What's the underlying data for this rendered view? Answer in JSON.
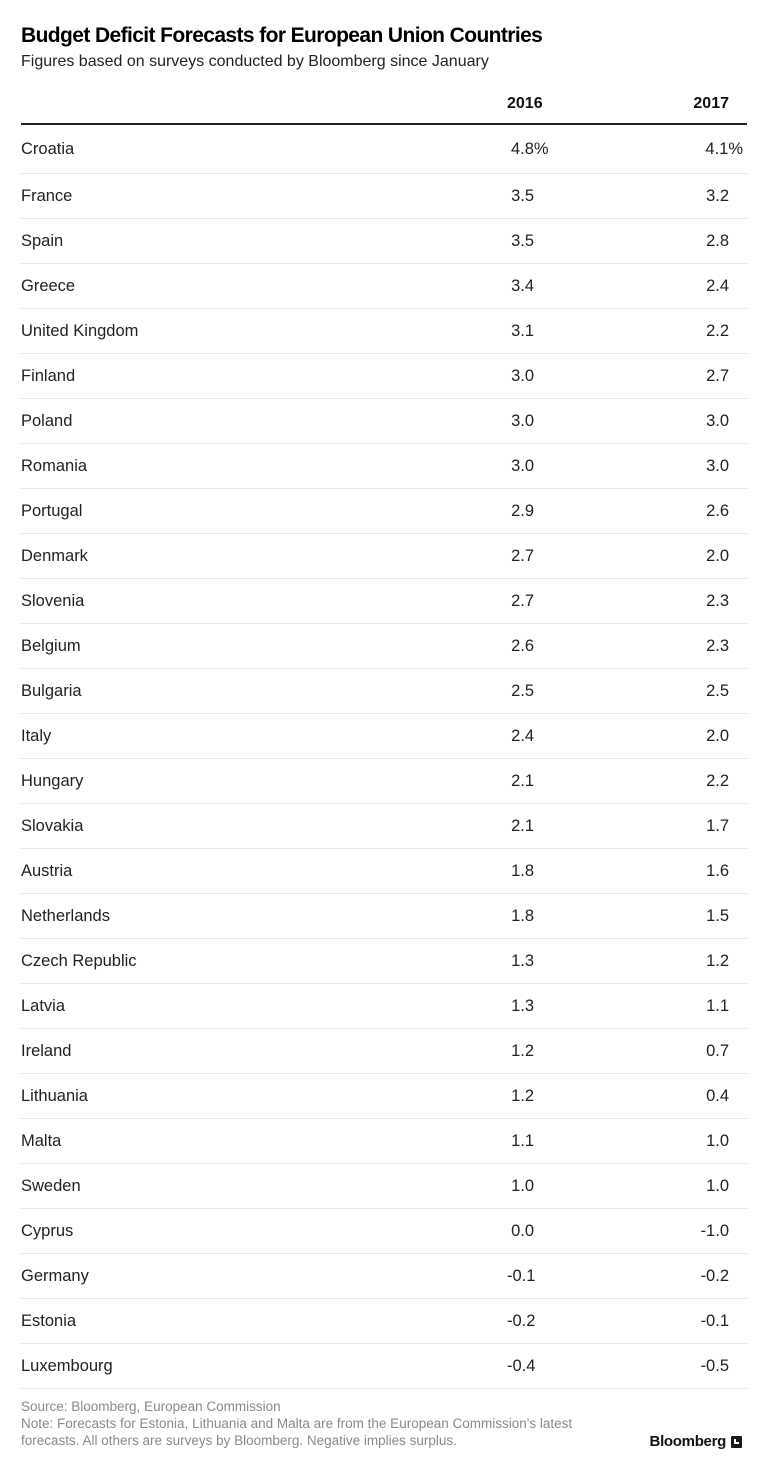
{
  "chart_data": {
    "type": "table",
    "title": "Budget Deficit Forecasts for European Union Countries",
    "subtitle": "Figures based on surveys conducted by Bloomberg since January",
    "columns": [
      "",
      "2016",
      "2017"
    ],
    "rows": [
      {
        "country": "Croatia",
        "y2016": "4.8%",
        "y2017": "4.1%"
      },
      {
        "country": "France",
        "y2016": "3.5",
        "y2017": "3.2"
      },
      {
        "country": "Spain",
        "y2016": "3.5",
        "y2017": "2.8"
      },
      {
        "country": "Greece",
        "y2016": "3.4",
        "y2017": "2.4"
      },
      {
        "country": "United Kingdom",
        "y2016": "3.1",
        "y2017": "2.2"
      },
      {
        "country": "Finland",
        "y2016": "3.0",
        "y2017": "2.7"
      },
      {
        "country": "Poland",
        "y2016": "3.0",
        "y2017": "3.0"
      },
      {
        "country": "Romania",
        "y2016": "3.0",
        "y2017": "3.0"
      },
      {
        "country": "Portugal",
        "y2016": "2.9",
        "y2017": "2.6"
      },
      {
        "country": "Denmark",
        "y2016": "2.7",
        "y2017": "2.0"
      },
      {
        "country": "Slovenia",
        "y2016": "2.7",
        "y2017": "2.3"
      },
      {
        "country": "Belgium",
        "y2016": "2.6",
        "y2017": "2.3"
      },
      {
        "country": "Bulgaria",
        "y2016": "2.5",
        "y2017": "2.5"
      },
      {
        "country": "Italy",
        "y2016": "2.4",
        "y2017": "2.0"
      },
      {
        "country": "Hungary",
        "y2016": "2.1",
        "y2017": "2.2"
      },
      {
        "country": "Slovakia",
        "y2016": "2.1",
        "y2017": "1.7"
      },
      {
        "country": "Austria",
        "y2016": "1.8",
        "y2017": "1.6"
      },
      {
        "country": "Netherlands",
        "y2016": "1.8",
        "y2017": "1.5"
      },
      {
        "country": "Czech Republic",
        "y2016": "1.3",
        "y2017": "1.2"
      },
      {
        "country": "Latvia",
        "y2016": "1.3",
        "y2017": "1.1"
      },
      {
        "country": "Ireland",
        "y2016": "1.2",
        "y2017": "0.7"
      },
      {
        "country": "Lithuania",
        "y2016": "1.2",
        "y2017": "0.4"
      },
      {
        "country": "Malta",
        "y2016": "1.1",
        "y2017": "1.0"
      },
      {
        "country": "Sweden",
        "y2016": "1.0",
        "y2017": "1.0"
      },
      {
        "country": "Cyprus",
        "y2016": "0.0",
        "y2017": "-1.0"
      },
      {
        "country": "Germany",
        "y2016": "-0.1",
        "y2017": "-0.2"
      },
      {
        "country": "Estonia",
        "y2016": "-0.2",
        "y2017": "-0.1"
      },
      {
        "country": "Luxembourg",
        "y2016": "-0.4",
        "y2017": "-0.5"
      }
    ]
  },
  "footer": {
    "source": "Source: Bloomberg, European Commission",
    "note_line1": "Note: Forecasts for Estonia, Lithuania and Malta are from the European Commission's latest",
    "note_line2": "forecasts. All others are surveys by Bloomberg. Negative implies surplus.",
    "brand": "Bloomberg",
    "brand_icon": "bloomberg-logo-icon"
  }
}
